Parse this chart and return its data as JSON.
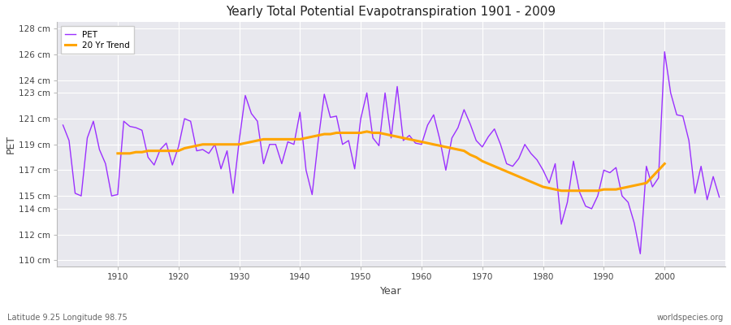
{
  "title": "Yearly Total Potential Evapotranspiration 1901 - 2009",
  "xlabel": "Year",
  "ylabel": "PET",
  "subtitle_left": "Latitude 9.25 Longitude 98.75",
  "subtitle_right": "worldspecies.org",
  "pet_color": "#9B30FF",
  "trend_color": "#FFA500",
  "plot_bg_color": "#E8E8EE",
  "fig_bg_color": "#FFFFFF",
  "grid_color": "#FFFFFF",
  "ylim_min": 109.5,
  "ylim_max": 128.5,
  "xlim_min": 1900,
  "xlim_max": 2010,
  "ytick_vals": [
    110,
    112,
    114,
    115,
    117,
    119,
    121,
    123,
    124,
    126,
    128
  ],
  "xtick_vals": [
    1910,
    1920,
    1930,
    1940,
    1950,
    1960,
    1970,
    1980,
    1990,
    2000
  ],
  "years": [
    1901,
    1902,
    1903,
    1904,
    1905,
    1906,
    1907,
    1908,
    1909,
    1910,
    1911,
    1912,
    1913,
    1914,
    1915,
    1916,
    1917,
    1918,
    1919,
    1920,
    1921,
    1922,
    1923,
    1924,
    1925,
    1926,
    1927,
    1928,
    1929,
    1930,
    1931,
    1932,
    1933,
    1934,
    1935,
    1936,
    1937,
    1938,
    1939,
    1940,
    1941,
    1942,
    1943,
    1944,
    1945,
    1946,
    1947,
    1948,
    1949,
    1950,
    1951,
    1952,
    1953,
    1954,
    1955,
    1956,
    1957,
    1958,
    1959,
    1960,
    1961,
    1962,
    1963,
    1964,
    1965,
    1966,
    1967,
    1968,
    1969,
    1970,
    1971,
    1972,
    1973,
    1974,
    1975,
    1976,
    1977,
    1978,
    1979,
    1980,
    1981,
    1982,
    1983,
    1984,
    1985,
    1986,
    1987,
    1988,
    1989,
    1990,
    1991,
    1992,
    1993,
    1994,
    1995,
    1996,
    1997,
    1998,
    1999,
    2000,
    2001,
    2002,
    2003,
    2004,
    2005,
    2006,
    2007,
    2008,
    2009
  ],
  "pet_values": [
    120.5,
    119.3,
    115.2,
    115.0,
    119.5,
    120.8,
    118.6,
    117.5,
    115.0,
    115.1,
    120.8,
    120.4,
    120.3,
    120.1,
    118.0,
    117.4,
    118.6,
    119.1,
    117.4,
    118.8,
    121.0,
    120.8,
    118.5,
    118.6,
    118.3,
    119.0,
    117.1,
    118.5,
    115.2,
    119.3,
    122.8,
    121.4,
    120.8,
    117.5,
    119.0,
    119.0,
    117.5,
    119.2,
    119.0,
    121.5,
    117.0,
    115.1,
    119.3,
    122.9,
    121.1,
    121.2,
    119.0,
    119.3,
    117.1,
    121.0,
    123.0,
    119.5,
    118.9,
    123.0,
    119.5,
    123.5,
    119.3,
    119.7,
    119.1,
    119.0,
    120.5,
    121.3,
    119.4,
    117.0,
    119.5,
    120.3,
    121.7,
    120.6,
    119.3,
    118.8,
    119.6,
    120.2,
    119.0,
    117.5,
    117.3,
    117.9,
    119.0,
    118.3,
    117.8,
    117.0,
    116.0,
    117.5,
    112.8,
    114.5,
    117.7,
    115.3,
    114.2,
    114.0,
    115.0,
    117.0,
    116.8,
    117.2,
    115.0,
    114.5,
    112.9,
    110.5,
    117.3,
    115.7,
    116.4,
    126.2,
    123.0,
    121.3,
    121.2,
    119.3,
    115.2,
    117.3,
    114.7,
    116.5,
    114.9
  ],
  "trend_values": [
    null,
    null,
    null,
    null,
    null,
    null,
    null,
    null,
    null,
    118.3,
    118.3,
    118.3,
    118.4,
    118.4,
    118.5,
    118.5,
    118.5,
    118.5,
    118.5,
    118.5,
    118.7,
    118.8,
    118.9,
    119.0,
    119.0,
    119.0,
    119.0,
    119.0,
    119.0,
    119.0,
    119.1,
    119.2,
    119.3,
    119.4,
    119.4,
    119.4,
    119.4,
    119.4,
    119.4,
    119.4,
    119.5,
    119.6,
    119.7,
    119.8,
    119.8,
    119.9,
    119.9,
    119.9,
    119.9,
    119.9,
    120.0,
    119.9,
    119.9,
    119.8,
    119.7,
    119.6,
    119.5,
    119.4,
    119.3,
    119.2,
    119.1,
    119.0,
    118.9,
    118.8,
    118.7,
    118.6,
    118.5,
    118.2,
    118.0,
    117.7,
    117.5,
    117.3,
    117.1,
    116.9,
    116.7,
    116.5,
    116.3,
    116.1,
    115.9,
    115.7,
    115.6,
    115.5,
    115.4,
    115.4,
    115.4,
    115.4,
    115.4,
    115.4,
    115.4,
    115.5,
    115.5,
    115.5,
    115.6,
    115.7,
    115.8,
    115.9,
    116.0,
    116.5,
    117.0,
    117.5,
    null,
    null,
    null,
    null,
    null,
    null,
    null,
    null,
    null
  ]
}
